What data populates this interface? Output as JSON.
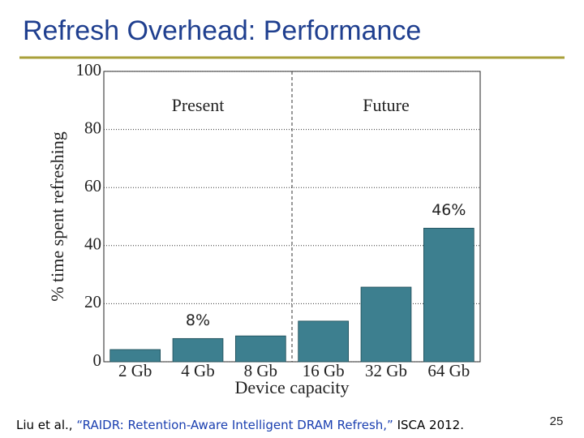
{
  "slide": {
    "title": "Refresh Overhead: Performance",
    "citation": {
      "before": "Liu et al., ",
      "link": "“RAIDR: Retention-Aware Intelligent DRAM Refresh,”",
      "after": " ISCA 2012."
    },
    "page_number": "25"
  },
  "chart_data": {
    "type": "bar",
    "categories": [
      "2 Gb",
      "4 Gb",
      "8 Gb",
      "16 Gb",
      "32 Gb",
      "64 Gb"
    ],
    "values": [
      4.2,
      8,
      8.9,
      14,
      25.7,
      46
    ],
    "value_labels": [
      null,
      "8%",
      null,
      null,
      null,
      "46%"
    ],
    "color": "#3d7f8f",
    "ylim": [
      0,
      100
    ],
    "yticks": [
      0,
      20,
      40,
      60,
      80,
      100
    ],
    "grid": true,
    "xlabel": "Device capacity",
    "ylabel": "% time spent refreshing",
    "annotations": [
      "Present",
      "Future"
    ]
  }
}
